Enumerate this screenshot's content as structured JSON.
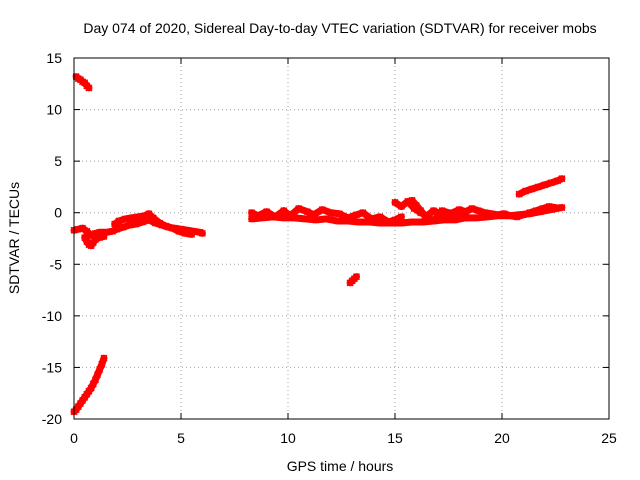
{
  "chart_data": {
    "type": "scatter",
    "title": "Day 074 of 2020, Sidereal Day-to-day VTEC variation (SDTVAR) for receiver mobs",
    "xlabel": "GPS time / hours",
    "ylabel": "SDTVAR / TECUs",
    "xlim": [
      0,
      25
    ],
    "ylim": [
      -20,
      15
    ],
    "xticks": [
      0,
      5,
      10,
      15,
      20,
      25
    ],
    "yticks": [
      -20,
      -15,
      -10,
      -5,
      0,
      5,
      10,
      15
    ],
    "xtick_labels": [
      "0",
      "5",
      "10",
      "15",
      "20",
      "25"
    ],
    "ytick_labels": [
      "-20",
      "-15",
      "-10",
      "-5",
      "0",
      "5",
      "10",
      "15"
    ],
    "grid": true,
    "marker": "x",
    "series_color": "#ff0000",
    "series": [
      {
        "name": "top-left-arc",
        "x": [
          0.1,
          0.2,
          0.3,
          0.4,
          0.5,
          0.6,
          0.7
        ],
        "y": [
          13.2,
          13.0,
          12.9,
          12.7,
          12.6,
          12.3,
          12.1
        ]
      },
      {
        "name": "early-band",
        "x": [
          0.0,
          0.2,
          0.4,
          0.6,
          0.8,
          1.0,
          1.2,
          1.5,
          1.8,
          2.0,
          2.3,
          2.6,
          2.9,
          3.2,
          3.5,
          3.8,
          4.1,
          4.4,
          4.7,
          5.0,
          5.3,
          5.6,
          5.9,
          6.0
        ],
        "y": [
          -1.7,
          -1.6,
          -1.5,
          -1.8,
          -2.2,
          -2.0,
          -1.9,
          -1.9,
          -1.8,
          -1.6,
          -1.4,
          -1.2,
          -1.1,
          -0.9,
          -0.7,
          -1.0,
          -1.2,
          -1.4,
          -1.5,
          -1.6,
          -1.7,
          -1.8,
          -1.9,
          -2.0
        ]
      },
      {
        "name": "early-hump",
        "x": [
          1.9,
          2.1,
          2.4,
          2.7,
          3.0,
          3.3,
          3.5,
          3.7,
          4.0,
          4.3,
          4.6,
          4.9,
          5.2,
          5.5
        ],
        "y": [
          -1.1,
          -0.8,
          -0.6,
          -0.5,
          -0.4,
          -0.3,
          -0.1,
          -0.5,
          -1.0,
          -1.3,
          -1.5,
          -1.8,
          -2.0,
          -2.1
        ]
      },
      {
        "name": "early-dip",
        "x": [
          0.5,
          0.6,
          0.7,
          0.8,
          0.9,
          1.0,
          1.2,
          1.4
        ],
        "y": [
          -2.4,
          -2.8,
          -3.1,
          -3.2,
          -2.9,
          -2.6,
          -2.4,
          -2.3
        ]
      },
      {
        "name": "bottom-left-arc",
        "x": [
          0.0,
          0.1,
          0.2,
          0.3,
          0.4,
          0.5,
          0.6,
          0.7,
          0.8,
          0.9,
          1.0,
          1.1,
          1.2,
          1.3,
          1.4
        ],
        "y": [
          -19.3,
          -19.1,
          -18.8,
          -18.5,
          -18.2,
          -17.9,
          -17.6,
          -17.3,
          -17.0,
          -16.6,
          -16.2,
          -15.7,
          -15.2,
          -14.7,
          -14.1
        ]
      },
      {
        "name": "main-band",
        "x": [
          8.3,
          8.8,
          9.3,
          9.8,
          10.3,
          10.8,
          11.3,
          11.8,
          12.3,
          12.8,
          13.3,
          13.8,
          14.3,
          14.8,
          15.3,
          15.8,
          16.3,
          16.8,
          17.3,
          17.8,
          18.3,
          18.8,
          19.3,
          19.8,
          20.3,
          20.8,
          21.3,
          21.8,
          22.3,
          22.8
        ],
        "y": [
          -0.6,
          -0.5,
          -0.4,
          -0.5,
          -0.5,
          -0.6,
          -0.7,
          -0.6,
          -0.8,
          -0.8,
          -0.9,
          -0.9,
          -1.0,
          -1.0,
          -1.0,
          -0.9,
          -0.9,
          -0.8,
          -0.7,
          -0.7,
          -0.5,
          -0.5,
          -0.4,
          -0.3,
          -0.3,
          -0.2,
          -0.1,
          0.1,
          0.3,
          0.5
        ]
      },
      {
        "name": "main-wave",
        "x": [
          8.3,
          8.6,
          9.0,
          9.4,
          9.8,
          10.1,
          10.5,
          10.9,
          11.2,
          11.6,
          12.0,
          12.4,
          12.8,
          13.2,
          13.5,
          13.9,
          14.3,
          14.7,
          15.0,
          15.3
        ],
        "y": [
          0.0,
          -0.3,
          0.1,
          -0.4,
          0.2,
          -0.3,
          0.4,
          0.1,
          -0.2,
          0.3,
          0.0,
          -0.1,
          -0.5,
          -0.2,
          0.0,
          -0.6,
          -0.4,
          -0.9,
          -0.7,
          -0.4
        ]
      },
      {
        "name": "late-wave",
        "x": [
          15.0,
          15.3,
          15.6,
          15.9,
          16.2,
          16.5,
          16.8,
          17.1,
          17.4,
          17.7,
          18.0,
          18.3,
          18.6,
          18.9,
          19.2,
          19.5,
          19.8,
          20.1,
          20.4,
          20.7,
          21.0,
          21.3,
          21.6,
          21.9,
          22.2,
          22.5
        ],
        "y": [
          1.0,
          0.6,
          1.1,
          0.4,
          0.0,
          -0.3,
          0.2,
          -0.1,
          -0.3,
          0.0,
          0.3,
          0.1,
          0.4,
          0.2,
          0.0,
          -0.1,
          -0.2,
          -0.1,
          -0.3,
          -0.4,
          -0.2,
          0.0,
          0.2,
          0.4,
          0.6,
          0.5
        ]
      },
      {
        "name": "late-arcs",
        "x": [
          15.8,
          16.0,
          16.2,
          16.4,
          16.6,
          16.8,
          17.2,
          17.5,
          17.8,
          18.1,
          18.4
        ],
        "y": [
          1.2,
          0.7,
          0.2,
          -0.3,
          -0.6,
          -0.8,
          0.2,
          0.0,
          -0.2,
          -0.4,
          -0.5
        ]
      },
      {
        "name": "top-right-rise",
        "x": [
          20.8,
          21.1,
          21.4,
          21.7,
          22.0,
          22.3,
          22.6,
          22.8
        ],
        "y": [
          1.8,
          2.1,
          2.3,
          2.5,
          2.7,
          2.9,
          3.1,
          3.3
        ]
      },
      {
        "name": "lone-segment",
        "x": [
          12.9,
          13.0,
          13.1,
          13.2
        ],
        "y": [
          -6.8,
          -6.6,
          -6.4,
          -6.2
        ]
      }
    ]
  }
}
